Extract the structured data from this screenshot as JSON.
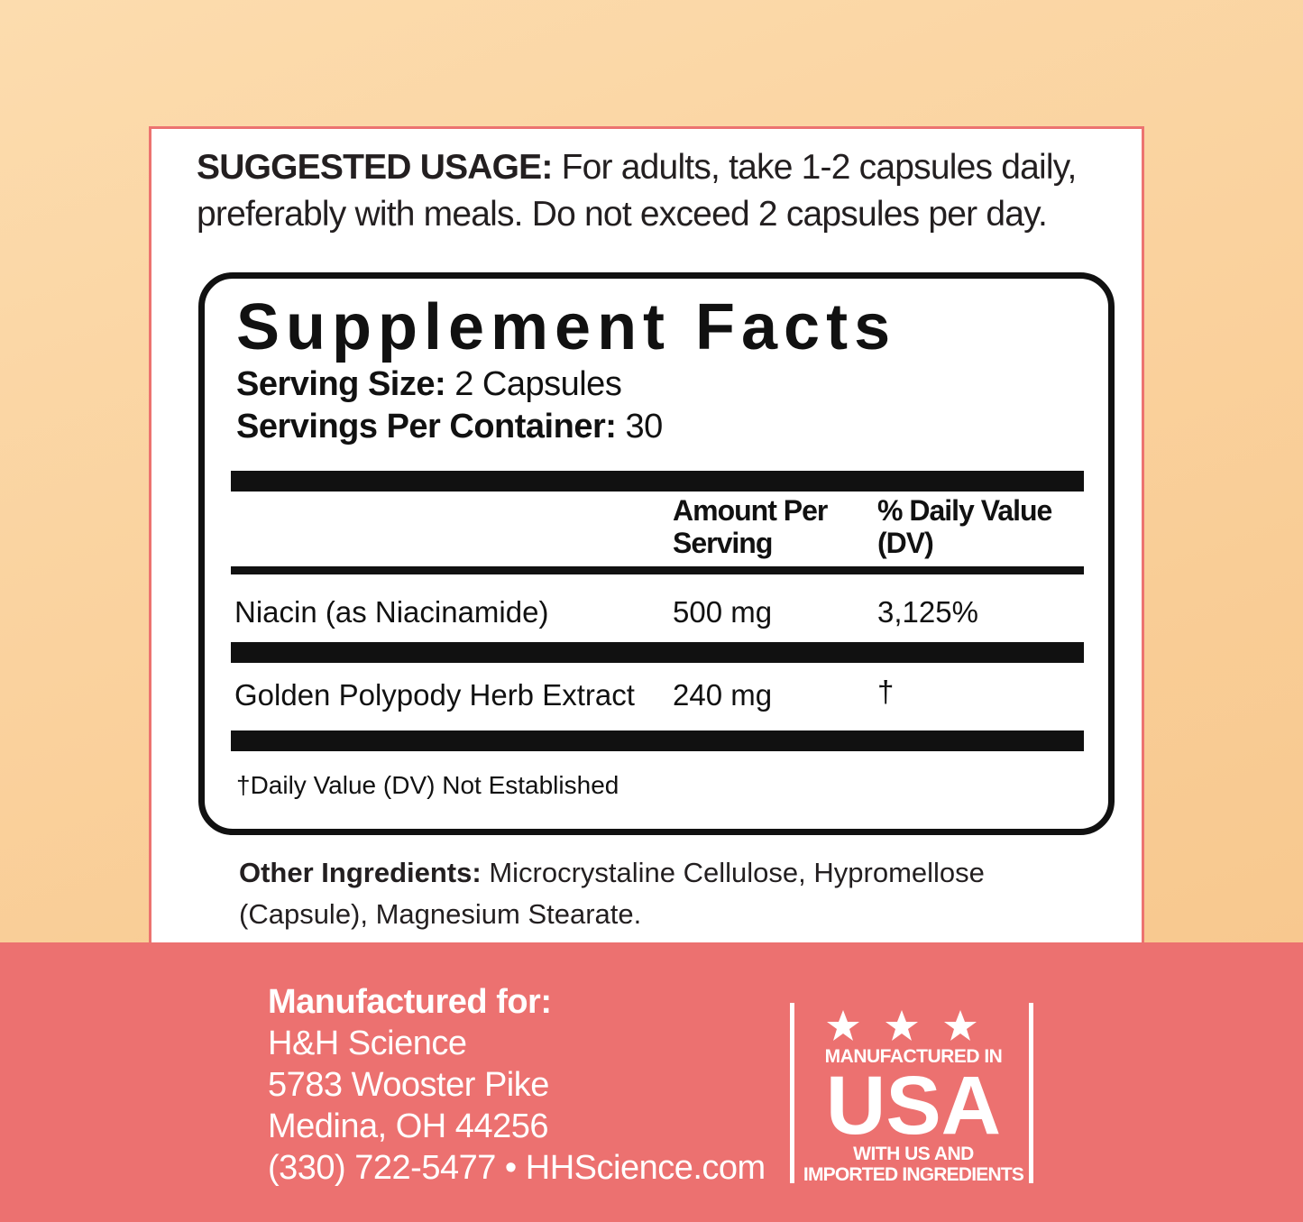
{
  "usage": {
    "label": "SUGGESTED USAGE:",
    "text": "For adults, take 1-2 capsules daily, preferably with meals. Do not exceed 2 capsules per day."
  },
  "facts": {
    "title": "Supplement Facts",
    "serving_size_label": "Serving Size:",
    "serving_size": "2 Capsules",
    "servings_label": "Servings Per Container:",
    "servings": "30",
    "headers": [
      "Amount Per Serving",
      "% Daily Value (DV)"
    ],
    "rows": [
      [
        "Niacin (as Niacinamide)",
        "500 mg",
        "3,125%"
      ],
      [
        "Golden Polypody Herb Extract",
        "240 mg",
        "†"
      ]
    ],
    "footnote": "†Daily Value (DV) Not Established"
  },
  "other_ingredients": {
    "label": "Other Ingredients:",
    "text": "Microcrystaline Cellulose, Hypromellose (Capsule), Magnesium Stearate."
  },
  "manufacturer": {
    "label": "Manufactured for:",
    "lines": [
      "H&H Science",
      "5783 Wooster Pike",
      "Medina, OH 44256",
      "(330) 722-5477 • HHScience.com"
    ]
  },
  "badge": {
    "top": "MANUFACTURED IN",
    "main": "USA",
    "bottom": [
      "WITH US AND",
      "IMPORTED INGREDIENTS"
    ]
  }
}
